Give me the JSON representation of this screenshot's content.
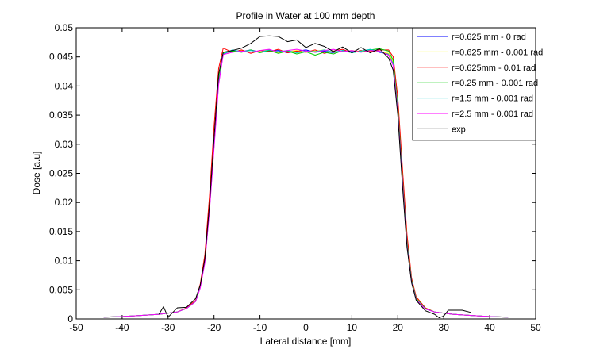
{
  "chart_data": {
    "type": "line",
    "title": "Profile in Water at 100 mm depth",
    "xlabel": "Lateral distance  [mm]",
    "ylabel": "Dose  [a.u]",
    "xlim": [
      -50,
      50
    ],
    "ylim": [
      0,
      0.05
    ],
    "xticks": [
      -50,
      -40,
      -30,
      -20,
      -10,
      0,
      10,
      20,
      30,
      40,
      50
    ],
    "yticks": [
      0,
      0.005,
      0.01,
      0.015,
      0.02,
      0.025,
      0.03,
      0.035,
      0.04,
      0.045,
      0.05
    ],
    "xtick_labels": [
      "-50",
      "-40",
      "-30",
      "-20",
      "-10",
      "0",
      "10",
      "20",
      "30",
      "40",
      "50"
    ],
    "ytick_labels": [
      "0",
      "0.005",
      "0.01",
      "0.015",
      "0.02",
      "0.025",
      "0.03",
      "0.035",
      "0.04",
      "0.045",
      "0.05"
    ],
    "grid": true,
    "legend_position": "top-right",
    "x": [
      -44,
      -40,
      -36,
      -32,
      -28,
      -26,
      -24,
      -23,
      -22,
      -21,
      -20,
      -19,
      -18,
      -16,
      -14,
      -12,
      -10,
      -8,
      -6,
      -4,
      -2,
      0,
      2,
      4,
      6,
      8,
      10,
      12,
      14,
      16,
      18,
      19,
      20,
      21,
      22,
      23,
      24,
      26,
      28,
      32,
      36,
      40,
      44
    ],
    "series": [
      {
        "name": "r=0.625 mm  - 0 rad",
        "color": "#0000ff",
        "values": [
          0.0003,
          0.0004,
          0.0006,
          0.0008,
          0.0012,
          0.0018,
          0.003,
          0.0055,
          0.01,
          0.019,
          0.03,
          0.041,
          0.0455,
          0.0461,
          0.0459,
          0.0462,
          0.0458,
          0.046,
          0.0461,
          0.0457,
          0.046,
          0.0462,
          0.0458,
          0.046,
          0.0457,
          0.0461,
          0.0459,
          0.046,
          0.0462,
          0.0458,
          0.0455,
          0.044,
          0.036,
          0.024,
          0.013,
          0.0065,
          0.0035,
          0.0018,
          0.0012,
          0.0008,
          0.0006,
          0.0004,
          0.0003
        ]
      },
      {
        "name": "r=0.625 mm - 0.001 rad",
        "color": "#ffff00",
        "values": [
          0.0003,
          0.0004,
          0.0006,
          0.0008,
          0.0012,
          0.0018,
          0.003,
          0.0056,
          0.0102,
          0.0192,
          0.0302,
          0.0412,
          0.0457,
          0.0459,
          0.0461,
          0.0458,
          0.046,
          0.0462,
          0.0457,
          0.0459,
          0.0461,
          0.0458,
          0.046,
          0.0462,
          0.0458,
          0.0459,
          0.0461,
          0.0459,
          0.0461,
          0.0459,
          0.0456,
          0.0441,
          0.0362,
          0.0242,
          0.0131,
          0.0066,
          0.0036,
          0.0018,
          0.0012,
          0.0008,
          0.0006,
          0.0004,
          0.0003
        ]
      },
      {
        "name": "r=0.625mm - 0.01 rad",
        "color": "#ff0000",
        "values": [
          0.0003,
          0.0004,
          0.0006,
          0.0008,
          0.0012,
          0.0019,
          0.0032,
          0.006,
          0.011,
          0.021,
          0.033,
          0.043,
          0.0465,
          0.0458,
          0.0462,
          0.0456,
          0.0461,
          0.0459,
          0.0463,
          0.0457,
          0.046,
          0.0458,
          0.0462,
          0.0456,
          0.046,
          0.0463,
          0.0457,
          0.0461,
          0.0459,
          0.0462,
          0.0462,
          0.045,
          0.038,
          0.026,
          0.0145,
          0.007,
          0.0038,
          0.0019,
          0.0012,
          0.0008,
          0.0006,
          0.0004,
          0.0003
        ]
      },
      {
        "name": "r=0.25 mm - 0.001 rad",
        "color": "#00cc00",
        "values": [
          0.0003,
          0.0004,
          0.0006,
          0.0008,
          0.0012,
          0.0018,
          0.003,
          0.0055,
          0.01,
          0.019,
          0.03,
          0.041,
          0.0456,
          0.046,
          0.0458,
          0.0462,
          0.0457,
          0.0461,
          0.0456,
          0.046,
          0.0455,
          0.0459,
          0.0453,
          0.0458,
          0.0455,
          0.0461,
          0.0457,
          0.046,
          0.0462,
          0.0464,
          0.046,
          0.0444,
          0.0364,
          0.0243,
          0.0132,
          0.0066,
          0.0035,
          0.0018,
          0.0012,
          0.0008,
          0.0006,
          0.0004,
          0.0003
        ]
      },
      {
        "name": "r=1.5 mm - 0.001 rad",
        "color": "#00cccc",
        "values": [
          0.0003,
          0.0004,
          0.0006,
          0.0008,
          0.0012,
          0.0018,
          0.003,
          0.0054,
          0.0098,
          0.0187,
          0.0296,
          0.0405,
          0.0455,
          0.0462,
          0.0459,
          0.0461,
          0.0458,
          0.0462,
          0.0459,
          0.0461,
          0.0457,
          0.046,
          0.0459,
          0.0462,
          0.0458,
          0.0461,
          0.0457,
          0.046,
          0.0463,
          0.0459,
          0.0454,
          0.0437,
          0.0357,
          0.0238,
          0.0128,
          0.0064,
          0.0034,
          0.0017,
          0.0012,
          0.0008,
          0.0006,
          0.0004,
          0.0003
        ]
      },
      {
        "name": "r=2.5 mm - 0.001 rad",
        "color": "#ff00ff",
        "values": [
          0.0003,
          0.0004,
          0.0006,
          0.0008,
          0.0012,
          0.0018,
          0.003,
          0.0053,
          0.0096,
          0.0184,
          0.0293,
          0.0402,
          0.0454,
          0.0458,
          0.046,
          0.0458,
          0.0461,
          0.0463,
          0.0458,
          0.0461,
          0.0463,
          0.046,
          0.0458,
          0.0461,
          0.0463,
          0.0459,
          0.0461,
          0.0458,
          0.0461,
          0.046,
          0.0453,
          0.0435,
          0.0355,
          0.0236,
          0.0126,
          0.0063,
          0.0033,
          0.0017,
          0.0012,
          0.0008,
          0.0006,
          0.0004,
          0.0003
        ]
      }
    ],
    "exp": {
      "name": "exp",
      "color": "#000000",
      "x": [
        -32,
        -31,
        -30,
        -28,
        -26,
        -24,
        -23,
        -22,
        -21,
        -20,
        -19,
        -18,
        -16,
        -14,
        -12,
        -10,
        -8,
        -6,
        -4,
        -2,
        0,
        2,
        4,
        6,
        8,
        10,
        12,
        14,
        16,
        18,
        19,
        20,
        21,
        22,
        23,
        24,
        26,
        28,
        29,
        30,
        31,
        32,
        34,
        36
      ],
      "values": [
        0.0008,
        0.0021,
        0.0003,
        0.0019,
        0.002,
        0.0035,
        0.0058,
        0.0103,
        0.0195,
        0.031,
        0.042,
        0.0458,
        0.0461,
        0.0465,
        0.0473,
        0.0485,
        0.0486,
        0.0485,
        0.0476,
        0.0479,
        0.0466,
        0.0473,
        0.0468,
        0.0459,
        0.0467,
        0.0457,
        0.0466,
        0.0457,
        0.0464,
        0.0448,
        0.0427,
        0.035,
        0.023,
        0.0123,
        0.0062,
        0.0032,
        0.0014,
        0.0008,
        0.0002,
        0.0005,
        0.0015,
        0.0015,
        0.0015,
        0.0011
      ]
    }
  }
}
